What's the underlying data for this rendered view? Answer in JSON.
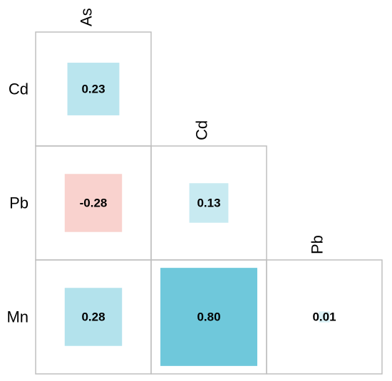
{
  "chart_data": {
    "type": "heatmap",
    "variables": [
      "As",
      "Cd",
      "Pb",
      "Mn"
    ],
    "row_labels": [
      "Cd",
      "Pb",
      "Mn"
    ],
    "col_labels": [
      "As",
      "Cd",
      "Pb"
    ],
    "cells": [
      {
        "row": "Cd",
        "col": "As",
        "value": 0.23,
        "label": "0.23"
      },
      {
        "row": "Pb",
        "col": "As",
        "value": -0.28,
        "label": "-0.28"
      },
      {
        "row": "Pb",
        "col": "Cd",
        "value": 0.13,
        "label": "0.13"
      },
      {
        "row": "Mn",
        "col": "As",
        "value": 0.28,
        "label": "0.28"
      },
      {
        "row": "Mn",
        "col": "Cd",
        "value": 0.8,
        "label": "0.80"
      },
      {
        "row": "Mn",
        "col": "Pb",
        "value": 0.01,
        "label": "0.01"
      }
    ],
    "value_range": [
      -1,
      1
    ],
    "colors": {
      "positive": "#6fc8db",
      "negative": "#f3aaa3",
      "background": "#ffffff",
      "border": "#bfbfbf"
    },
    "layout": "lower-triangle",
    "legend": "none"
  }
}
